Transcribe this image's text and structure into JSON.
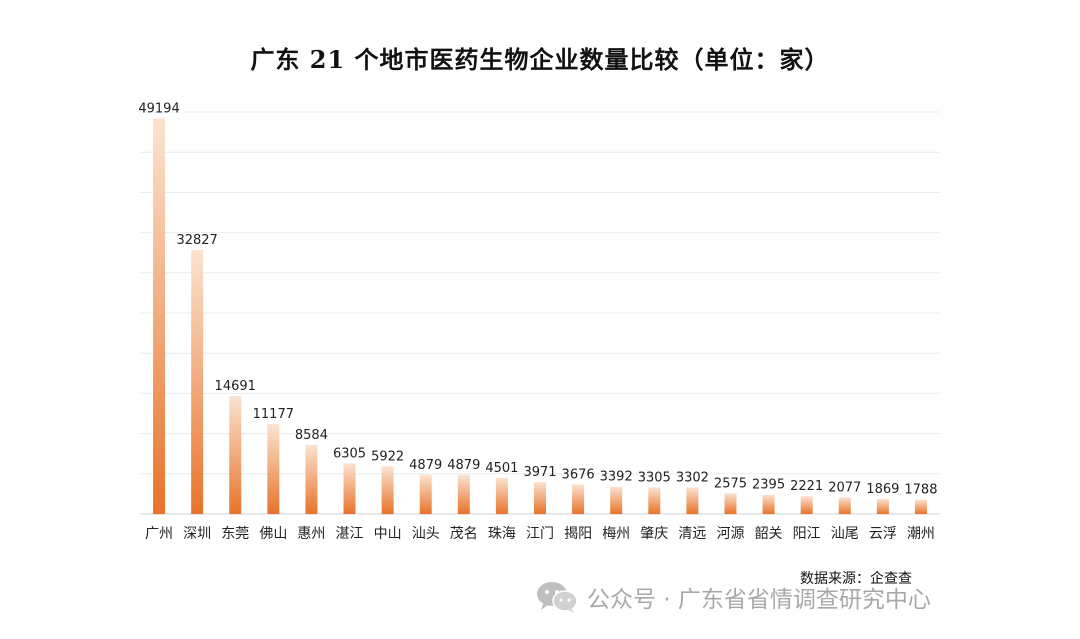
{
  "chart_data": {
    "type": "bar",
    "title": "广东 21 个地市医药生物企业数量比较（单位：家）",
    "categories": [
      "广州",
      "深圳",
      "东莞",
      "佛山",
      "惠州",
      "湛江",
      "中山",
      "汕头",
      "茂名",
      "珠海",
      "江门",
      "揭阳",
      "梅州",
      "肇庆",
      "清远",
      "河源",
      "韶关",
      "阳江",
      "汕尾",
      "云浮",
      "潮州"
    ],
    "values": [
      49194,
      32827,
      14691,
      11177,
      8584,
      6305,
      5922,
      4879,
      4879,
      4501,
      3971,
      3676,
      3392,
      3305,
      3302,
      2575,
      2395,
      2221,
      2077,
      1869,
      1788
    ],
    "value_labels": [
      "49194",
      "32827",
      "14691",
      "11177",
      "8584",
      "6305",
      "5922",
      "4879",
      "4879",
      "4501",
      "3971",
      "3676",
      "3392",
      "3305",
      "3302",
      "2575",
      "2395",
      "2221",
      "2077",
      "1869",
      "1788"
    ],
    "ylim": [
      0,
      50000
    ],
    "grid": true,
    "bar_color_top": "#fbe3d0",
    "bar_color_bottom": "#e8732a"
  },
  "source": "数据来源：企查查",
  "watermark": {
    "text": "公众号 · 广东省省情调查研究中心",
    "icon": "wechat-icon"
  }
}
